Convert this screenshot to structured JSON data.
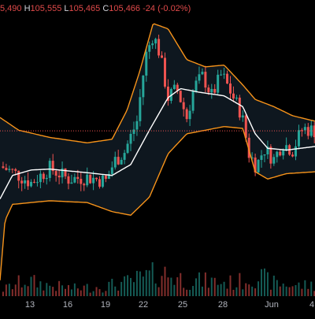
{
  "legend": {
    "open_value": "5,490",
    "high_label": "H",
    "high_value": "105,555",
    "low_label": "L",
    "low_value": "105,465",
    "close_label": "C",
    "close_value": "105,466",
    "change_value": "-24 (-0.02%)"
  },
  "colors": {
    "background": "#000000",
    "up": "#26a69a",
    "down": "#ef5350",
    "bollinger_band": "#f7931a",
    "bollinger_fill": "#0f1a22",
    "basis_line": "#ffffff",
    "last_price_line": "#ef5350"
  },
  "chart_data": {
    "type": "candlestick",
    "x_tick_labels": [
      "13",
      "16",
      "19",
      "22",
      "25",
      "28",
      "Jun",
      "4"
    ],
    "x_ticks": [
      {
        "label": "13",
        "day": 13
      },
      {
        "label": "16",
        "day": 16
      },
      {
        "label": "19",
        "day": 19
      },
      {
        "label": "22",
        "day": 22
      },
      {
        "label": "25",
        "day": 25
      },
      {
        "label": "28",
        "day": 28
      },
      {
        "label": "Jun",
        "day": 32
      },
      {
        "label": "4",
        "day": 35
      }
    ],
    "day_range": [
      10.0,
      35.3
    ],
    "price_range": [
      96500,
      112000
    ],
    "last_close": 105466,
    "anchors": [
      {
        "day": 10.0,
        "price": 103500
      },
      {
        "day": 11.0,
        "price": 103200
      },
      {
        "day": 12.5,
        "price": 102600
      },
      {
        "day": 14.0,
        "price": 103400
      },
      {
        "day": 15.5,
        "price": 102800
      },
      {
        "day": 17.0,
        "price": 102900
      },
      {
        "day": 18.5,
        "price": 102700
      },
      {
        "day": 19.2,
        "price": 103800
      },
      {
        "day": 20.0,
        "price": 104300
      },
      {
        "day": 21.0,
        "price": 106000
      },
      {
        "day": 21.7,
        "price": 109600
      },
      {
        "day": 22.3,
        "price": 110800
      },
      {
        "day": 22.8,
        "price": 109800
      },
      {
        "day": 23.5,
        "price": 107300
      },
      {
        "day": 24.2,
        "price": 107800
      },
      {
        "day": 25.0,
        "price": 106200
      },
      {
        "day": 25.6,
        "price": 107900
      },
      {
        "day": 26.3,
        "price": 108500
      },
      {
        "day": 27.0,
        "price": 107400
      },
      {
        "day": 27.8,
        "price": 108600
      },
      {
        "day": 28.6,
        "price": 107500
      },
      {
        "day": 29.4,
        "price": 106400
      },
      {
        "day": 30.0,
        "price": 104200
      },
      {
        "day": 30.6,
        "price": 103500
      },
      {
        "day": 31.2,
        "price": 104500
      },
      {
        "day": 32.0,
        "price": 103900
      },
      {
        "day": 32.7,
        "price": 104800
      },
      {
        "day": 33.5,
        "price": 104400
      },
      {
        "day": 34.3,
        "price": 105600
      },
      {
        "day": 35.3,
        "price": 105466
      }
    ],
    "upper_band": [
      {
        "day": 10.0,
        "price": 106200
      },
      {
        "day": 11.5,
        "price": 105500
      },
      {
        "day": 14.0,
        "price": 105100
      },
      {
        "day": 17.0,
        "price": 104800
      },
      {
        "day": 19.0,
        "price": 105000
      },
      {
        "day": 20.2,
        "price": 106600
      },
      {
        "day": 21.2,
        "price": 108700
      },
      {
        "day": 22.3,
        "price": 111400
      },
      {
        "day": 23.5,
        "price": 111100
      },
      {
        "day": 25.0,
        "price": 109400
      },
      {
        "day": 26.5,
        "price": 109000
      },
      {
        "day": 28.0,
        "price": 109100
      },
      {
        "day": 29.5,
        "price": 108000
      },
      {
        "day": 30.5,
        "price": 107200
      },
      {
        "day": 32.0,
        "price": 106800
      },
      {
        "day": 33.5,
        "price": 106300
      },
      {
        "day": 35.3,
        "price": 106000
      }
    ],
    "lower_band": [
      {
        "day": 10.0,
        "price": 97200
      },
      {
        "day": 10.4,
        "price": 100500
      },
      {
        "day": 11.0,
        "price": 101400
      },
      {
        "day": 12.5,
        "price": 101500
      },
      {
        "day": 14.0,
        "price": 101600
      },
      {
        "day": 17.0,
        "price": 101500
      },
      {
        "day": 19.0,
        "price": 101000
      },
      {
        "day": 20.5,
        "price": 100800
      },
      {
        "day": 22.0,
        "price": 101800
      },
      {
        "day": 23.5,
        "price": 104200
      },
      {
        "day": 25.0,
        "price": 105300
      },
      {
        "day": 26.5,
        "price": 105500
      },
      {
        "day": 28.0,
        "price": 105700
      },
      {
        "day": 29.5,
        "price": 105600
      },
      {
        "day": 30.5,
        "price": 103200
      },
      {
        "day": 31.5,
        "price": 102800
      },
      {
        "day": 33.0,
        "price": 103100
      },
      {
        "day": 35.3,
        "price": 103200
      }
    ],
    "basis": [
      {
        "day": 10.0,
        "price": 101700
      },
      {
        "day": 11.0,
        "price": 103000
      },
      {
        "day": 12.5,
        "price": 103300
      },
      {
        "day": 14.0,
        "price": 103350
      },
      {
        "day": 17.0,
        "price": 103150
      },
      {
        "day": 19.0,
        "price": 103000
      },
      {
        "day": 20.5,
        "price": 103600
      },
      {
        "day": 22.0,
        "price": 105500
      },
      {
        "day": 23.5,
        "price": 107300
      },
      {
        "day": 24.5,
        "price": 107800
      },
      {
        "day": 26.0,
        "price": 107600
      },
      {
        "day": 28.0,
        "price": 107400
      },
      {
        "day": 29.5,
        "price": 106800
      },
      {
        "day": 30.5,
        "price": 105300
      },
      {
        "day": 31.5,
        "price": 104500
      },
      {
        "day": 33.0,
        "price": 104400
      },
      {
        "day": 35.3,
        "price": 104600
      }
    ],
    "volume_profile": [
      {
        "day": 10.0,
        "level": 0.1
      },
      {
        "day": 12.0,
        "level": 0.3
      },
      {
        "day": 14.0,
        "level": 0.2
      },
      {
        "day": 16.0,
        "level": 0.15
      },
      {
        "day": 18.0,
        "level": 0.18
      },
      {
        "day": 20.0,
        "level": 0.25
      },
      {
        "day": 21.5,
        "level": 0.35
      },
      {
        "day": 23.0,
        "level": 0.45
      },
      {
        "day": 25.0,
        "level": 0.3
      },
      {
        "day": 27.0,
        "level": 0.28
      },
      {
        "day": 29.0,
        "level": 0.25
      },
      {
        "day": 30.5,
        "level": 0.4
      },
      {
        "day": 32.0,
        "level": 0.25
      },
      {
        "day": 34.0,
        "level": 0.2
      },
      {
        "day": 35.3,
        "level": 0.22
      }
    ]
  }
}
